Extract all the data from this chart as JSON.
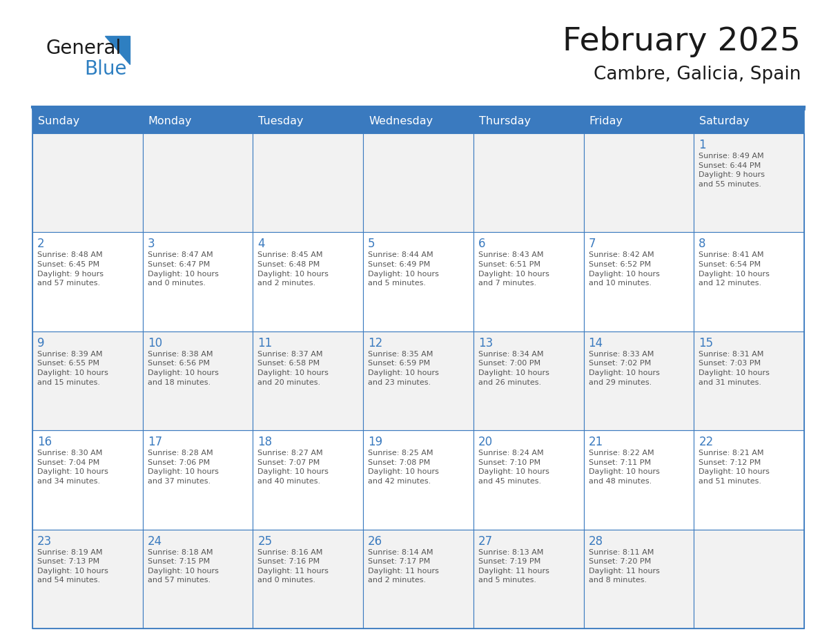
{
  "title": "February 2025",
  "subtitle": "Cambre, Galicia, Spain",
  "days_of_week": [
    "Sunday",
    "Monday",
    "Tuesday",
    "Wednesday",
    "Thursday",
    "Friday",
    "Saturday"
  ],
  "header_bg": "#3a7abf",
  "header_text": "#ffffff",
  "cell_bg_even": "#f2f2f2",
  "cell_bg_odd": "#ffffff",
  "grid_line_color": "#3a7abf",
  "day_number_color": "#3a7abf",
  "info_text_color": "#555555",
  "title_color": "#1a1a1a",
  "subtitle_color": "#1a1a1a",
  "logo_general_color": "#1a1a1a",
  "logo_blue_color": "#2e7fc1",
  "weeks": [
    [
      null,
      null,
      null,
      null,
      null,
      null,
      1
    ],
    [
      2,
      3,
      4,
      5,
      6,
      7,
      8
    ],
    [
      9,
      10,
      11,
      12,
      13,
      14,
      15
    ],
    [
      16,
      17,
      18,
      19,
      20,
      21,
      22
    ],
    [
      23,
      24,
      25,
      26,
      27,
      28,
      null
    ]
  ],
  "sunrise_data": {
    "1": "Sunrise: 8:49 AM\nSunset: 6:44 PM\nDaylight: 9 hours\nand 55 minutes.",
    "2": "Sunrise: 8:48 AM\nSunset: 6:45 PM\nDaylight: 9 hours\nand 57 minutes.",
    "3": "Sunrise: 8:47 AM\nSunset: 6:47 PM\nDaylight: 10 hours\nand 0 minutes.",
    "4": "Sunrise: 8:45 AM\nSunset: 6:48 PM\nDaylight: 10 hours\nand 2 minutes.",
    "5": "Sunrise: 8:44 AM\nSunset: 6:49 PM\nDaylight: 10 hours\nand 5 minutes.",
    "6": "Sunrise: 8:43 AM\nSunset: 6:51 PM\nDaylight: 10 hours\nand 7 minutes.",
    "7": "Sunrise: 8:42 AM\nSunset: 6:52 PM\nDaylight: 10 hours\nand 10 minutes.",
    "8": "Sunrise: 8:41 AM\nSunset: 6:54 PM\nDaylight: 10 hours\nand 12 minutes.",
    "9": "Sunrise: 8:39 AM\nSunset: 6:55 PM\nDaylight: 10 hours\nand 15 minutes.",
    "10": "Sunrise: 8:38 AM\nSunset: 6:56 PM\nDaylight: 10 hours\nand 18 minutes.",
    "11": "Sunrise: 8:37 AM\nSunset: 6:58 PM\nDaylight: 10 hours\nand 20 minutes.",
    "12": "Sunrise: 8:35 AM\nSunset: 6:59 PM\nDaylight: 10 hours\nand 23 minutes.",
    "13": "Sunrise: 8:34 AM\nSunset: 7:00 PM\nDaylight: 10 hours\nand 26 minutes.",
    "14": "Sunrise: 8:33 AM\nSunset: 7:02 PM\nDaylight: 10 hours\nand 29 minutes.",
    "15": "Sunrise: 8:31 AM\nSunset: 7:03 PM\nDaylight: 10 hours\nand 31 minutes.",
    "16": "Sunrise: 8:30 AM\nSunset: 7:04 PM\nDaylight: 10 hours\nand 34 minutes.",
    "17": "Sunrise: 8:28 AM\nSunset: 7:06 PM\nDaylight: 10 hours\nand 37 minutes.",
    "18": "Sunrise: 8:27 AM\nSunset: 7:07 PM\nDaylight: 10 hours\nand 40 minutes.",
    "19": "Sunrise: 8:25 AM\nSunset: 7:08 PM\nDaylight: 10 hours\nand 42 minutes.",
    "20": "Sunrise: 8:24 AM\nSunset: 7:10 PM\nDaylight: 10 hours\nand 45 minutes.",
    "21": "Sunrise: 8:22 AM\nSunset: 7:11 PM\nDaylight: 10 hours\nand 48 minutes.",
    "22": "Sunrise: 8:21 AM\nSunset: 7:12 PM\nDaylight: 10 hours\nand 51 minutes.",
    "23": "Sunrise: 8:19 AM\nSunset: 7:13 PM\nDaylight: 10 hours\nand 54 minutes.",
    "24": "Sunrise: 8:18 AM\nSunset: 7:15 PM\nDaylight: 10 hours\nand 57 minutes.",
    "25": "Sunrise: 8:16 AM\nSunset: 7:16 PM\nDaylight: 11 hours\nand 0 minutes.",
    "26": "Sunrise: 8:14 AM\nSunset: 7:17 PM\nDaylight: 11 hours\nand 2 minutes.",
    "27": "Sunrise: 8:13 AM\nSunset: 7:19 PM\nDaylight: 11 hours\nand 5 minutes.",
    "28": "Sunrise: 8:11 AM\nSunset: 7:20 PM\nDaylight: 11 hours\nand 8 minutes."
  },
  "fig_width": 11.88,
  "fig_height": 9.18,
  "dpi": 100
}
